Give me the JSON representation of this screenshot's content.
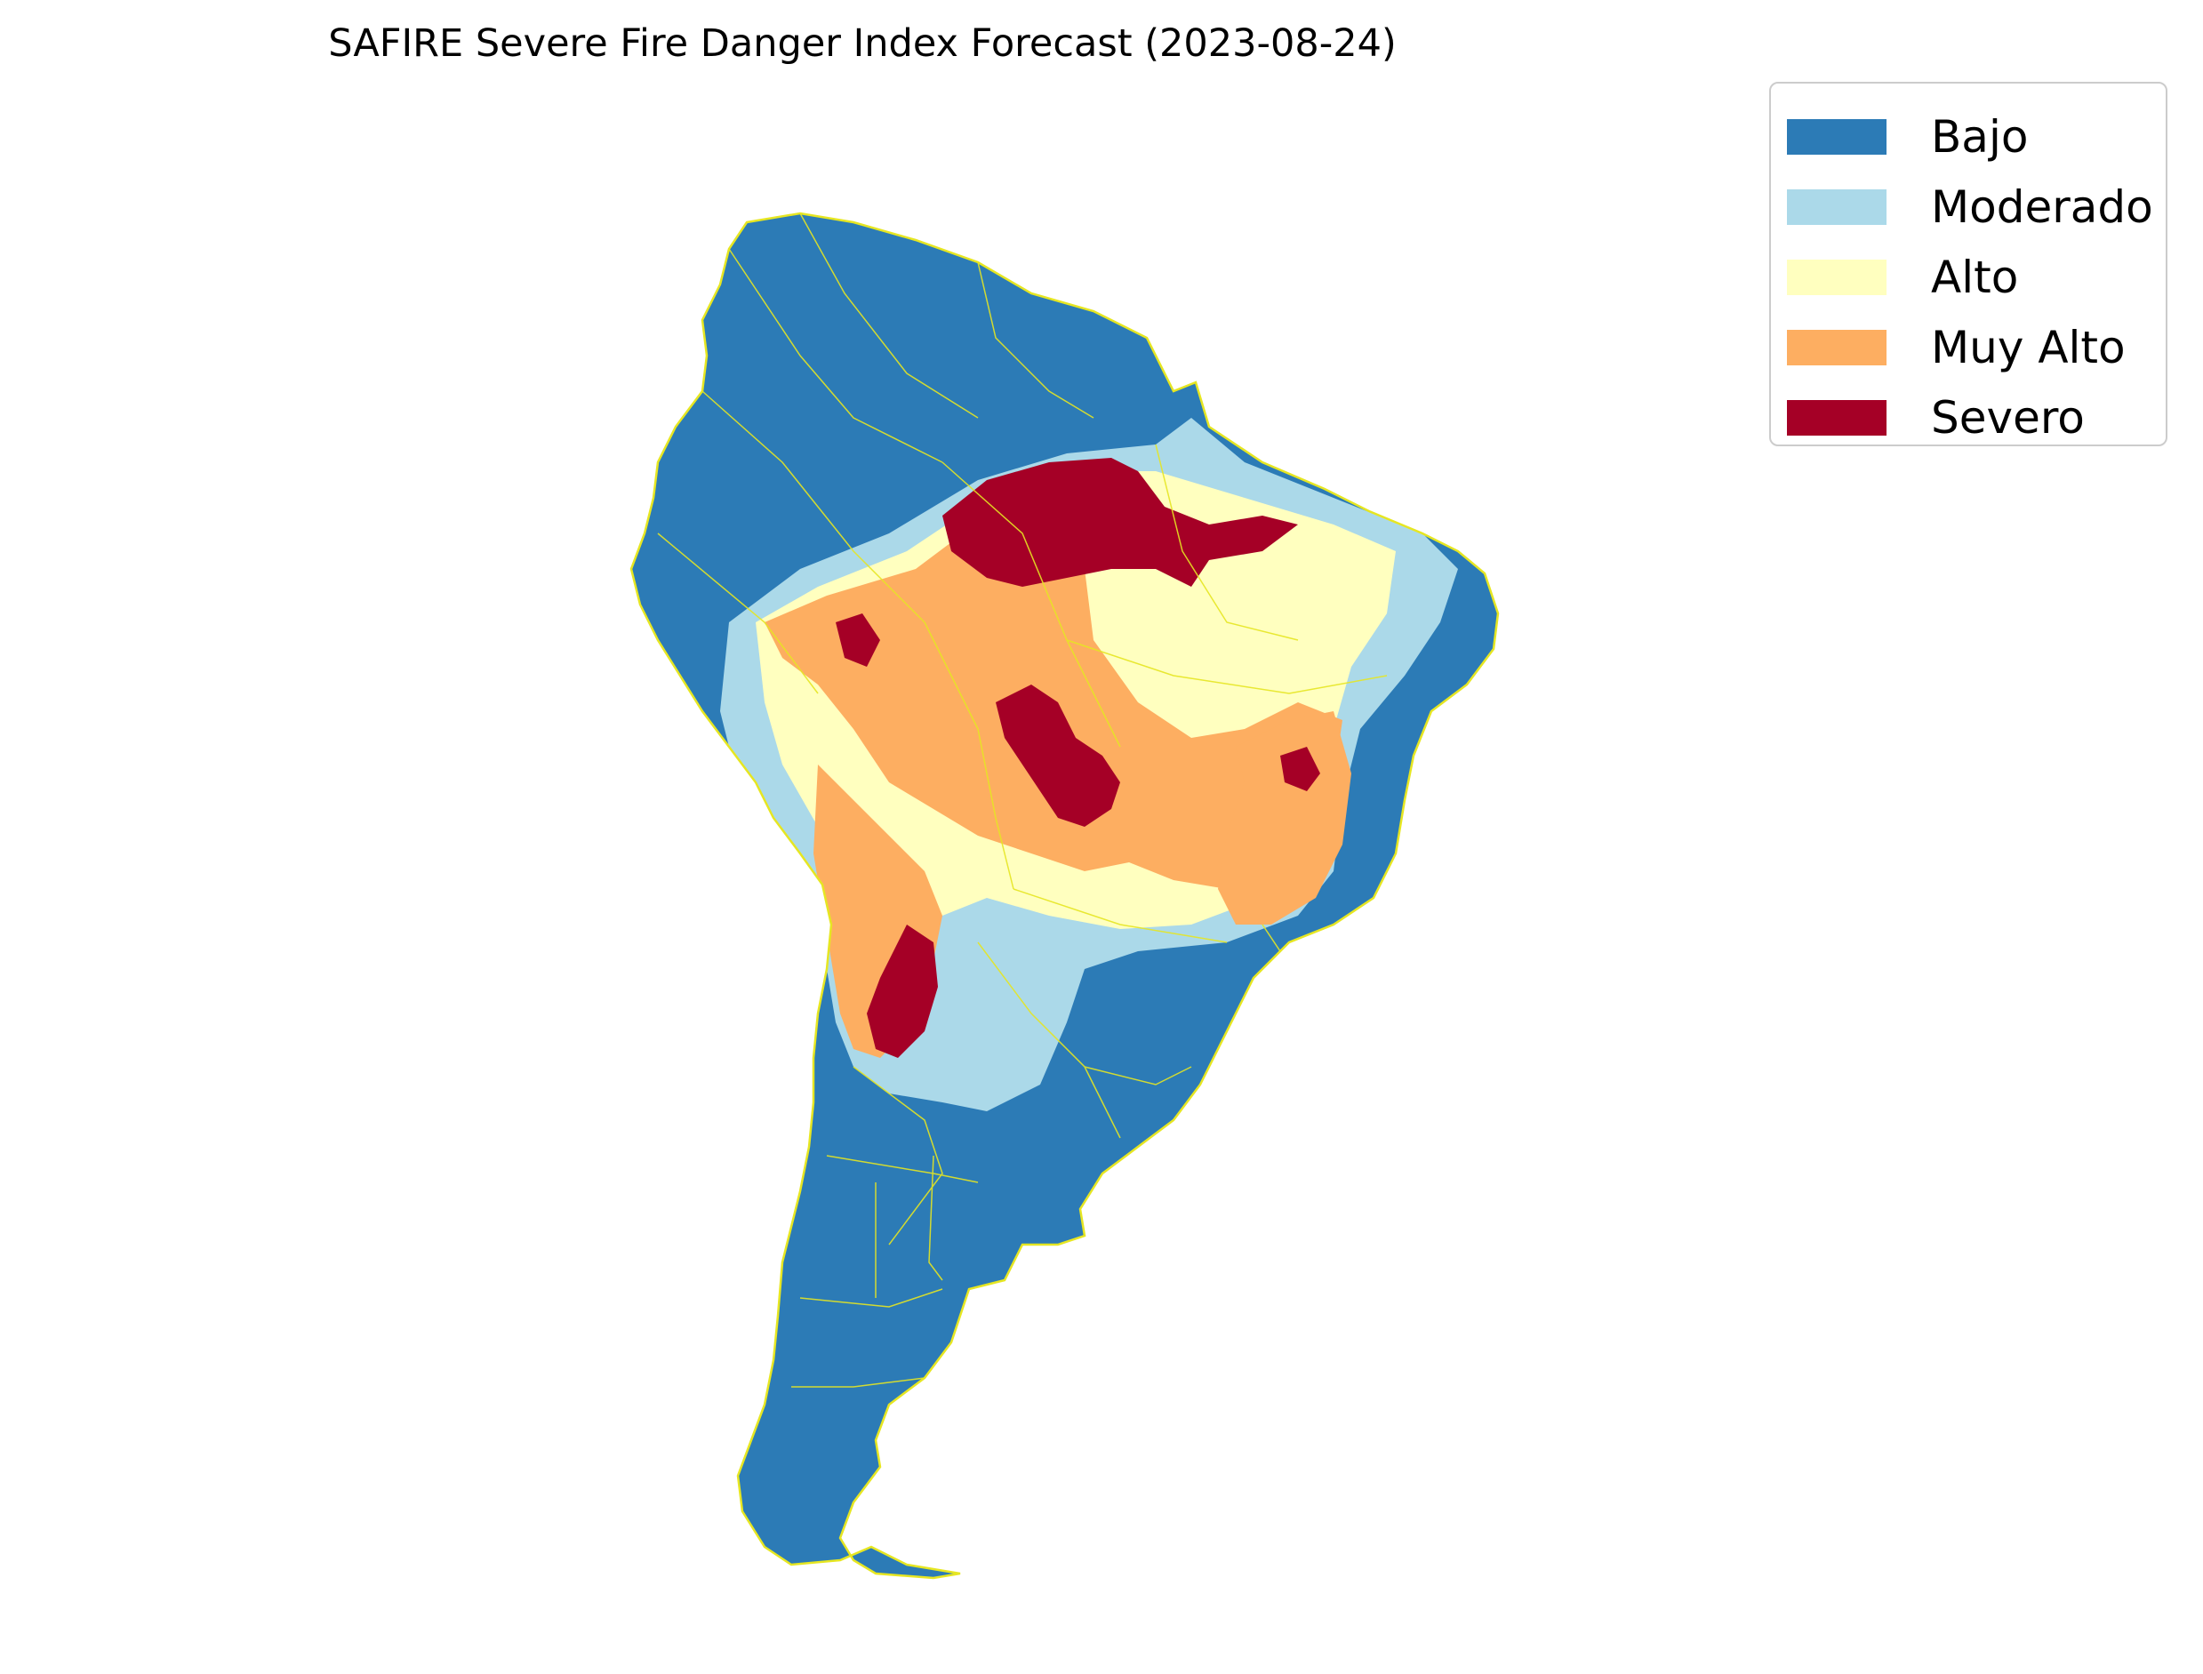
{
  "title": "SAFIRE Severe Fire Danger Index Forecast (2023-08-24)",
  "legend": {
    "items": [
      {
        "label": "Bajo",
        "color": "#2c7bb6"
      },
      {
        "label": "Moderado",
        "color": "#abd9e9"
      },
      {
        "label": "Alto",
        "color": "#ffffbf"
      },
      {
        "label": "Muy Alto",
        "color": "#fdae61"
      },
      {
        "label": "Severo",
        "color": "#a50026"
      }
    ]
  },
  "map": {
    "region": "South America",
    "boundary_color": "#e6e622"
  }
}
